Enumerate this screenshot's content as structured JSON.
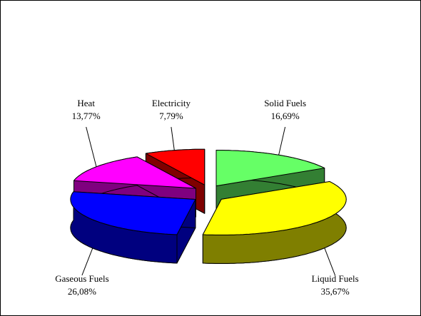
{
  "chart_data": {
    "type": "pie",
    "categories": [
      "Solid Fuels",
      "Liquid Fuels",
      "Gaseous Fuels",
      "Heat",
      "Electricity"
    ],
    "values": [
      16.69,
      35.67,
      26.08,
      13.77,
      7.79
    ],
    "value_labels": [
      "16,69%",
      "35,67%",
      "26,08%",
      "13,77%",
      "7,79%"
    ],
    "colors": [
      "#66ff66",
      "#ffff00",
      "#0000ff",
      "#ff00ff",
      "#ff0000"
    ]
  }
}
